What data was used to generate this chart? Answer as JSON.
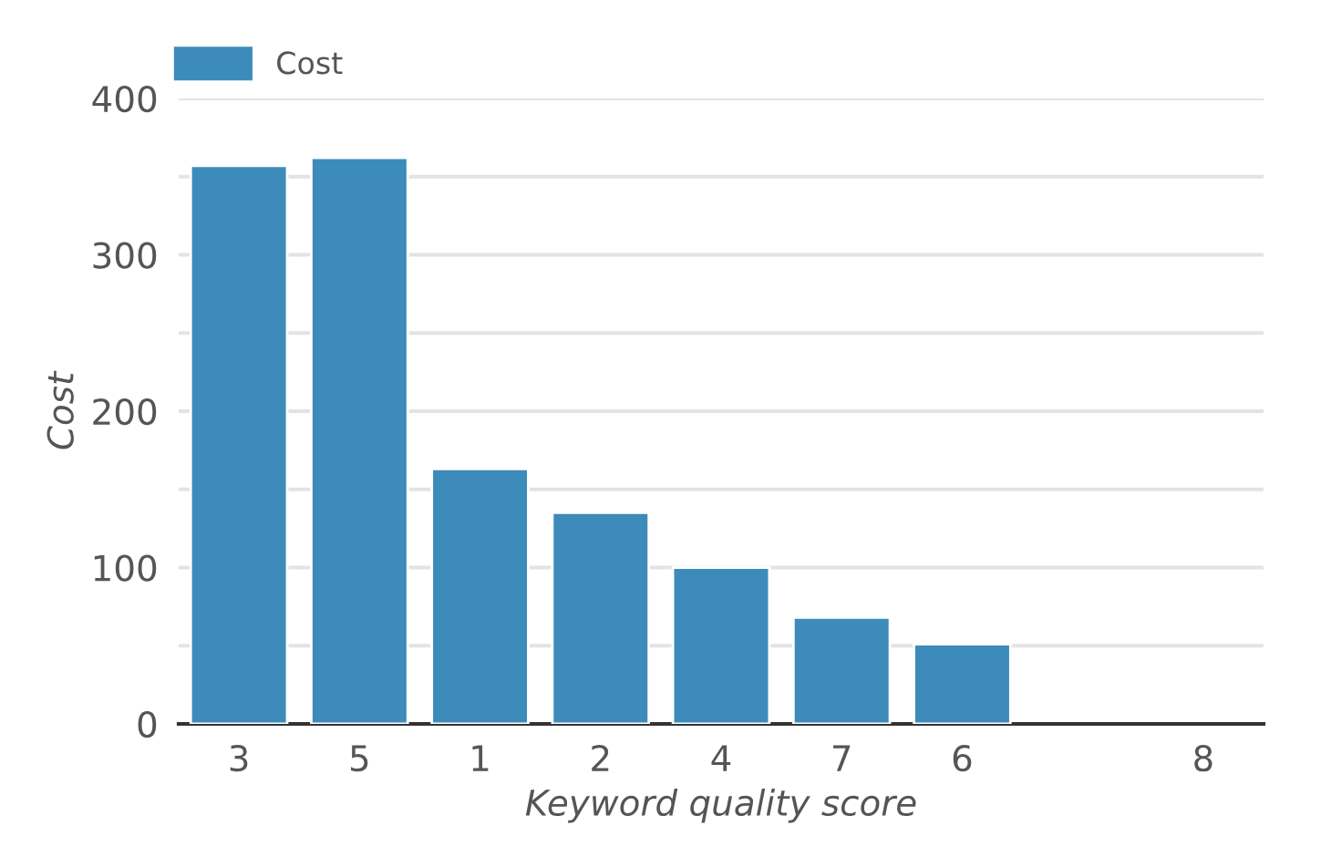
{
  "chart_data": {
    "type": "bar",
    "xlabel": "Keyword quality score",
    "ylabel": "Cost",
    "categories": [
      "3",
      "5",
      "1",
      "2",
      "4",
      "7",
      "6",
      null,
      "8"
    ],
    "series": [
      {
        "name": "Cost",
        "color": "#3d8bbb",
        "values": [
          357,
          362,
          163,
          135,
          100,
          68,
          51,
          null,
          null
        ]
      }
    ],
    "ylim": [
      0,
      400
    ],
    "yticks": [
      0,
      {
        "value": 50,
        "label": null
      },
      100,
      {
        "value": 150,
        "label": null
      },
      200,
      {
        "value": 250,
        "label": null
      },
      300,
      {
        "value": 350,
        "label": null
      },
      400
    ],
    "grid": "y",
    "legend": "top left"
  }
}
